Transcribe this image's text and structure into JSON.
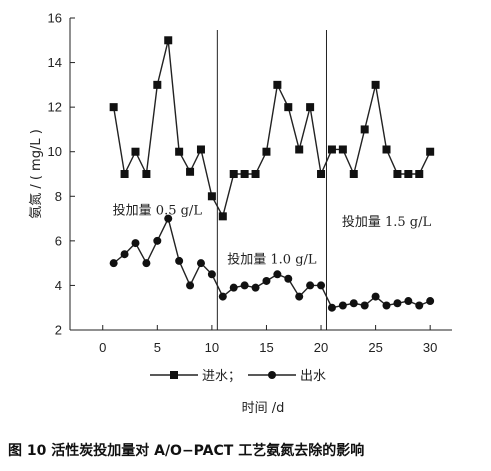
{
  "caption": "图 10   活性炭投加量对 A/O−PACT 工艺氨氮去除的影响",
  "chart_data": {
    "type": "line",
    "xlabel": "时间 /d",
    "ylabel": "氨氮 / ( mg/L )",
    "xlim": [
      -3,
      32
    ],
    "ylim": [
      2,
      16
    ],
    "xticks": [
      0,
      5,
      10,
      15,
      20,
      25,
      30
    ],
    "yticks": [
      2,
      4,
      6,
      8,
      10,
      12,
      14,
      16
    ],
    "grid": false,
    "legend_position": "bottom",
    "vlines": [
      10.5,
      20.5
    ],
    "annotations": [
      {
        "text": "投加量 0.5 g/L",
        "x": 5,
        "y": 7.4
      },
      {
        "text": "投加量 1.0 g/L",
        "x": 15.5,
        "y": 5.2
      },
      {
        "text": "投加量 1.5 g/L",
        "x": 26,
        "y": 6.9
      }
    ],
    "series": [
      {
        "name": "进水；",
        "marker": "square",
        "x": [
          1,
          2,
          3,
          4,
          5,
          6,
          7,
          8,
          9,
          10,
          11,
          12,
          13,
          14,
          15,
          16,
          17,
          18,
          19,
          20,
          21,
          22,
          23,
          24,
          25,
          26,
          27,
          28,
          29,
          30
        ],
        "values": [
          12,
          9,
          10,
          9,
          13,
          15,
          10,
          9.1,
          10.1,
          8,
          7.1,
          9,
          9,
          9,
          10,
          13,
          12,
          10.1,
          12,
          9,
          10.1,
          10.1,
          9,
          11,
          13,
          10.1,
          9,
          9,
          9,
          10
        ]
      },
      {
        "name": "出水",
        "marker": "circle",
        "x": [
          1,
          2,
          3,
          4,
          5,
          6,
          7,
          8,
          9,
          10,
          11,
          12,
          13,
          14,
          15,
          16,
          17,
          18,
          19,
          20,
          21,
          22,
          23,
          24,
          25,
          26,
          27,
          28,
          29,
          30
        ],
        "values": [
          5,
          5.4,
          5.9,
          5,
          6,
          7,
          5.1,
          4,
          5,
          4.5,
          3.5,
          3.9,
          4,
          3.9,
          4.2,
          4.5,
          4.3,
          3.5,
          4,
          4,
          3,
          3.1,
          3.2,
          3.1,
          3.5,
          3.1,
          3.2,
          3.3,
          3.1,
          3.3
        ]
      }
    ]
  }
}
